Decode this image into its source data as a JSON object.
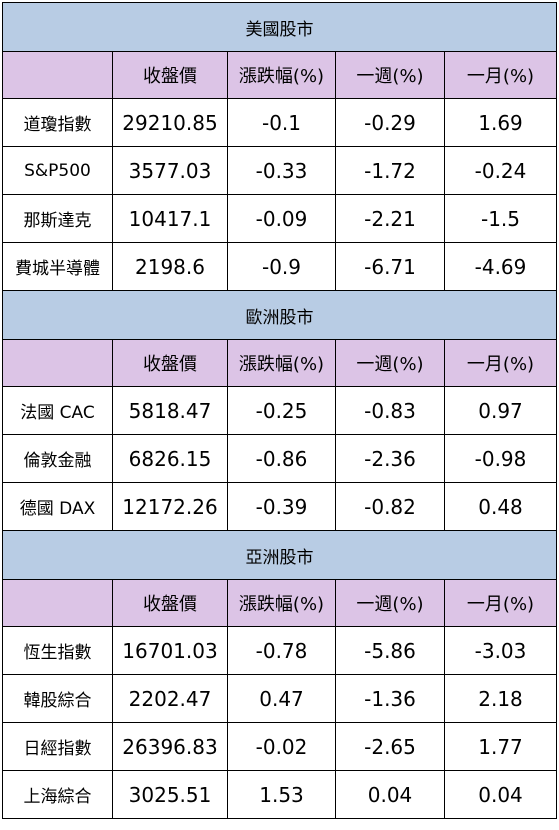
{
  "columns": [
    "收盤價",
    "漲跌幅(%)",
    "一週(%)",
    "一月(%)"
  ],
  "sections": [
    {
      "title": "美國股市",
      "rows": [
        {
          "name": "道瓊指數",
          "close": "29210.85",
          "change": "-0.1",
          "week": "-0.29",
          "month": "1.69"
        },
        {
          "name": "S&P500",
          "close": "3577.03",
          "change": "-0.33",
          "week": "-1.72",
          "month": "-0.24"
        },
        {
          "name": "那斯達克",
          "close": "10417.1",
          "change": "-0.09",
          "week": "-2.21",
          "month": "-1.5"
        },
        {
          "name": "費城半導體",
          "close": "2198.6",
          "change": "-0.9",
          "week": "-6.71",
          "month": "-4.69"
        }
      ]
    },
    {
      "title": "歐洲股市",
      "rows": [
        {
          "name": "法國 CAC",
          "close": "5818.47",
          "change": "-0.25",
          "week": "-0.83",
          "month": "0.97"
        },
        {
          "name": "倫敦金融",
          "close": "6826.15",
          "change": "-0.86",
          "week": "-2.36",
          "month": "-0.98"
        },
        {
          "name": "德國 DAX",
          "close": "12172.26",
          "change": "-0.39",
          "week": "-0.82",
          "month": "0.48"
        }
      ]
    },
    {
      "title": "亞洲股市",
      "rows": [
        {
          "name": "恆生指數",
          "close": "16701.03",
          "change": "-0.78",
          "week": "-5.86",
          "month": "-3.03"
        },
        {
          "name": "韓股綜合",
          "close": "2202.47",
          "change": "0.47",
          "week": "-1.36",
          "month": "2.18"
        },
        {
          "name": "日經指數",
          "close": "26396.83",
          "change": "-0.02",
          "week": "-2.65",
          "month": "1.77"
        },
        {
          "name": "上海綜合",
          "close": "3025.51",
          "change": "1.53",
          "week": "0.04",
          "month": "0.04"
        }
      ]
    }
  ],
  "colors": {
    "section_header_bg": "#b8cce4",
    "column_header_bg": "#dcc4e6",
    "border": "#000000"
  }
}
